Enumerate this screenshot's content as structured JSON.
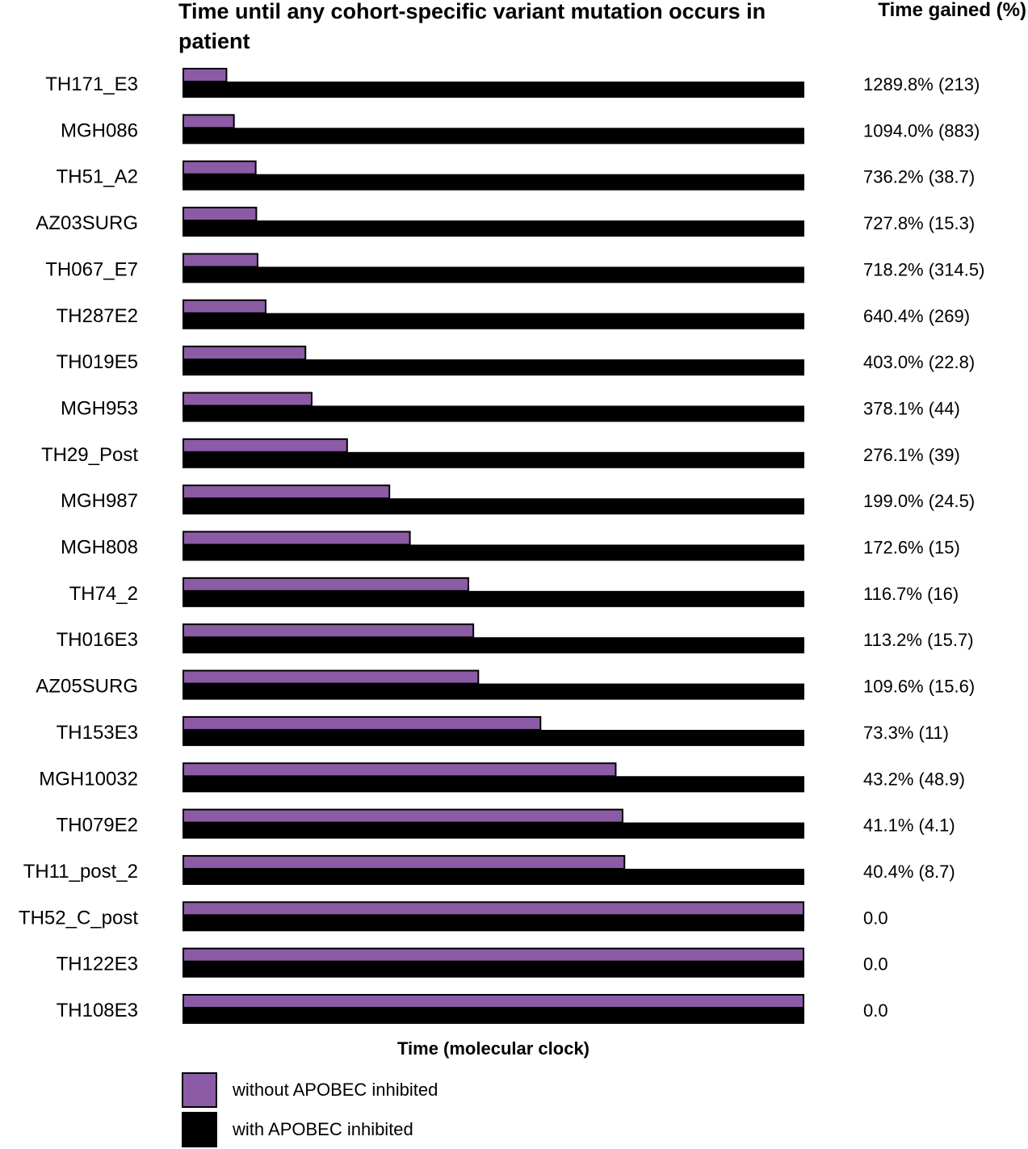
{
  "chart_data": {
    "type": "bar",
    "orientation": "horizontal",
    "title": "Time until any cohort-specific variant mutation occurs in patient",
    "xlabel": "Time (molecular clock)",
    "right_column_header": "Time gained (%)",
    "categories": [
      "TH171_E3",
      "MGH086",
      "TH51_A2",
      "AZ03SURG",
      "TH067_E7",
      "TH287E2",
      "TH019E5",
      "MGH953",
      "TH29_Post",
      "MGH987",
      "MGH808",
      "TH74_2",
      "TH016E3",
      "AZ05SURG",
      "TH153E3",
      "MGH10032",
      "TH079E2",
      "TH11_post_2",
      "TH52_C_post",
      "TH122E3",
      "TH108E3"
    ],
    "series": [
      {
        "name": "without APOBEC inhibited",
        "color": "#8B5CA5",
        "values": [
          0.072,
          0.084,
          0.119,
          0.12,
          0.122,
          0.135,
          0.199,
          0.209,
          0.266,
          0.334,
          0.367,
          0.461,
          0.469,
          0.477,
          0.577,
          0.698,
          0.709,
          0.712,
          1.0,
          1.0,
          1.0
        ]
      },
      {
        "name": "with APOBEC inhibited",
        "color": "#000000",
        "values": [
          1,
          1,
          1,
          1,
          1,
          1,
          1,
          1,
          1,
          1,
          1,
          1,
          1,
          1,
          1,
          1,
          1,
          1,
          1,
          1,
          1
        ]
      }
    ],
    "annotations": [
      "1289.8% (213)",
      "1094.0% (883)",
      "736.2% (38.7)",
      "727.8% (15.3)",
      "718.2% (314.5)",
      "640.4% (269)",
      "403.0% (22.8)",
      "378.1% (44)",
      "276.1% (39)",
      "199.0% (24.5)",
      "172.6% (15)",
      "116.7% (16)",
      "113.2% (15.7)",
      "109.6% (15.6)",
      "73.3% (11)",
      "43.2% (48.9)",
      "41.1% (4.1)",
      "40.4% (8.7)",
      "0.0",
      "0.0",
      "0.0"
    ],
    "xlim": [
      0,
      1
    ],
    "grid": false,
    "legend_position": "bottom-left"
  }
}
